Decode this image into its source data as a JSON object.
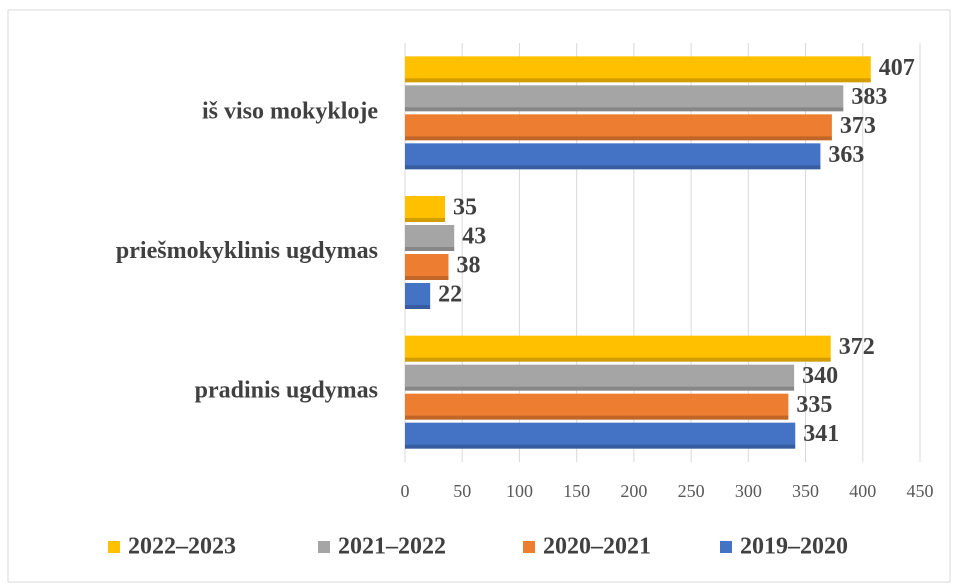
{
  "chart_data": {
    "type": "barh",
    "categories": [
      "iš viso mokykloje",
      "priešmokyklinis ugdymas",
      "pradinis ugdymas"
    ],
    "series": [
      {
        "name": "2022–2023",
        "color": "#ffc000",
        "values": [
          407,
          35,
          372
        ]
      },
      {
        "name": "2021–2022",
        "color": "#a5a5a5",
        "values": [
          383,
          43,
          340
        ]
      },
      {
        "name": "2020–2021",
        "color": "#ed7d31",
        "values": [
          373,
          38,
          335
        ]
      },
      {
        "name": "2019–2020",
        "color": "#4472c4",
        "values": [
          363,
          22,
          341
        ]
      }
    ],
    "xlim": [
      0,
      450
    ],
    "xticks": [
      0,
      50,
      100,
      150,
      200,
      250,
      300,
      350,
      400,
      450
    ],
    "grid": true,
    "legend": "bottom"
  }
}
